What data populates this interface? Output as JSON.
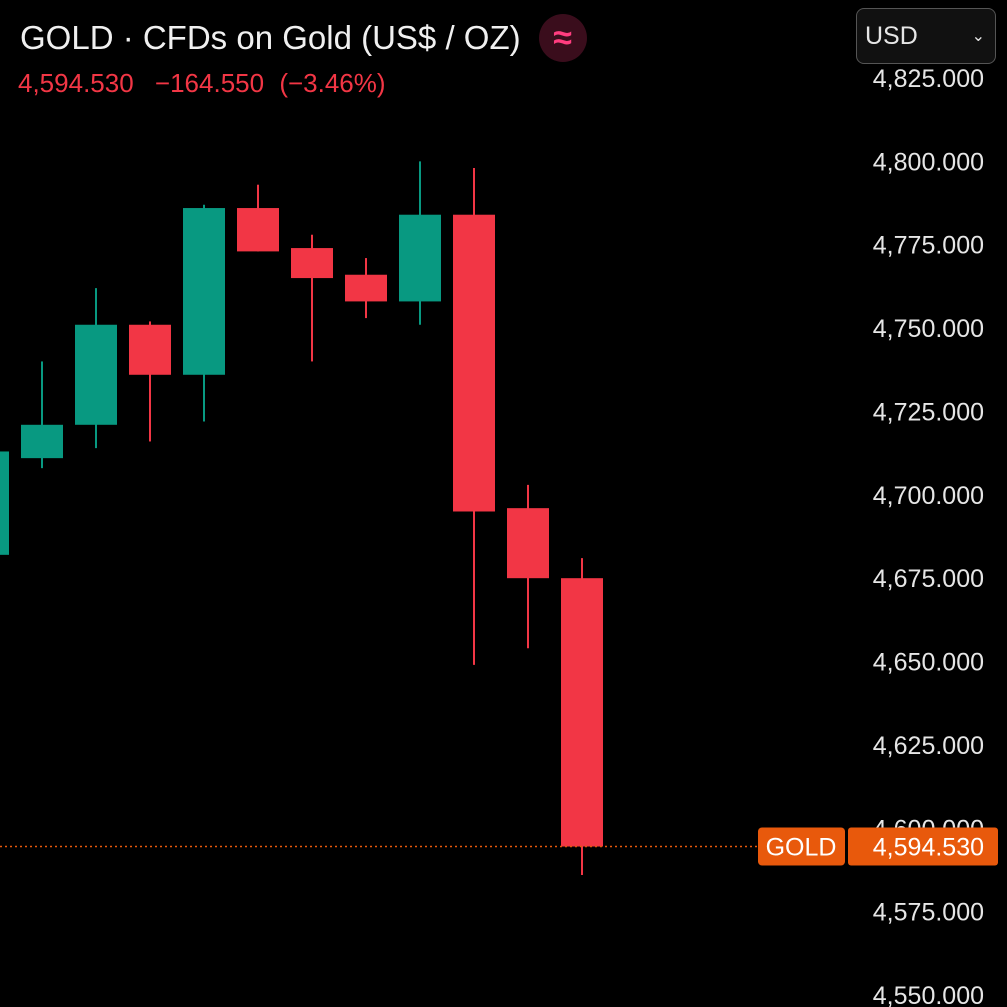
{
  "header": {
    "title": "GOLD · CFDs on Gold (US$ / OZ)",
    "badge_icon": "≈",
    "last_price": "4,594.530",
    "change": "−164.550",
    "change_pct": "(−3.46%)"
  },
  "currency_select": {
    "selected": "USD"
  },
  "price_label": {
    "symbol": "GOLD",
    "value": "4,594.530"
  },
  "colors": {
    "up": "#089981",
    "down": "#f23645",
    "last_price": "#e8590c",
    "background": "#000000"
  },
  "chart_data": {
    "type": "candlestick",
    "y_ticks": [
      "4,550.000",
      "4,575.000",
      "4,600.000",
      "4,625.000",
      "4,650.000",
      "4,675.000",
      "4,700.000",
      "4,725.000",
      "4,750.000",
      "4,775.000",
      "4,800.000",
      "4,825.000"
    ],
    "ylim": [
      4550,
      4825
    ],
    "last_price": 4594.53,
    "candles": [
      {
        "open": 4682,
        "high": 4713,
        "low": 4682,
        "close": 4713
      },
      {
        "open": 4711,
        "high": 4740,
        "low": 4708,
        "close": 4721
      },
      {
        "open": 4721,
        "high": 4762,
        "low": 4714,
        "close": 4751
      },
      {
        "open": 4751,
        "high": 4752,
        "low": 4716,
        "close": 4736
      },
      {
        "open": 4736,
        "high": 4787,
        "low": 4722,
        "close": 4786
      },
      {
        "open": 4786,
        "high": 4793,
        "low": 4773,
        "close": 4773
      },
      {
        "open": 4774,
        "high": 4778,
        "low": 4740,
        "close": 4765
      },
      {
        "open": 4766,
        "high": 4771,
        "low": 4753,
        "close": 4758
      },
      {
        "open": 4758,
        "high": 4800,
        "low": 4751,
        "close": 4784
      },
      {
        "open": 4784,
        "high": 4798,
        "low": 4649,
        "close": 4695
      },
      {
        "open": 4696,
        "high": 4703,
        "low": 4654,
        "close": 4675
      },
      {
        "open": 4675,
        "high": 4681,
        "low": 4586,
        "close": 4594.53
      }
    ]
  }
}
